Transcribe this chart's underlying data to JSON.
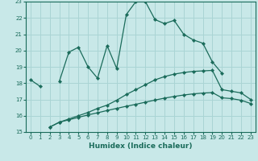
{
  "xlabel": "Humidex (Indice chaleur)",
  "bg_color": "#c8e8e8",
  "grid_color": "#aad4d4",
  "line_color": "#1a6b5a",
  "tick_color": "#1a6b5a",
  "xlim": [
    -0.5,
    23.5
  ],
  "ylim": [
    15,
    23
  ],
  "xticks": [
    0,
    1,
    2,
    3,
    4,
    5,
    6,
    7,
    8,
    9,
    10,
    11,
    12,
    13,
    14,
    15,
    16,
    17,
    18,
    19,
    20,
    21,
    22,
    23
  ],
  "yticks": [
    15,
    16,
    17,
    18,
    19,
    20,
    21,
    22,
    23
  ],
  "line1_x": [
    0,
    1,
    3,
    4,
    5,
    6,
    7,
    8,
    9,
    10,
    11,
    12,
    13,
    14,
    15,
    16,
    17,
    18,
    19,
    20
  ],
  "line1_y": [
    18.2,
    17.8,
    18.1,
    19.9,
    20.2,
    19.0,
    18.3,
    20.3,
    18.9,
    22.2,
    23.0,
    23.0,
    21.9,
    21.65,
    21.85,
    21.0,
    20.65,
    20.45,
    19.3,
    18.6
  ],
  "line2_x": [
    2,
    3,
    4,
    5,
    6,
    7,
    8,
    9,
    10,
    11,
    12,
    13,
    14,
    15,
    16,
    17,
    18,
    19,
    20,
    21,
    22,
    23
  ],
  "line2_y": [
    15.3,
    15.6,
    15.8,
    16.0,
    16.2,
    16.45,
    16.65,
    16.95,
    17.3,
    17.6,
    17.9,
    18.2,
    18.4,
    18.55,
    18.65,
    18.72,
    18.75,
    18.78,
    17.6,
    17.5,
    17.4,
    17.0
  ],
  "line3_x": [
    2,
    3,
    4,
    5,
    6,
    7,
    8,
    9,
    10,
    11,
    12,
    13,
    14,
    15,
    16,
    17,
    18,
    19,
    20,
    21,
    22,
    23
  ],
  "line3_y": [
    15.3,
    15.6,
    15.75,
    15.9,
    16.05,
    16.18,
    16.32,
    16.45,
    16.58,
    16.7,
    16.83,
    16.96,
    17.08,
    17.18,
    17.27,
    17.34,
    17.39,
    17.42,
    17.1,
    17.05,
    16.95,
    16.75
  ]
}
